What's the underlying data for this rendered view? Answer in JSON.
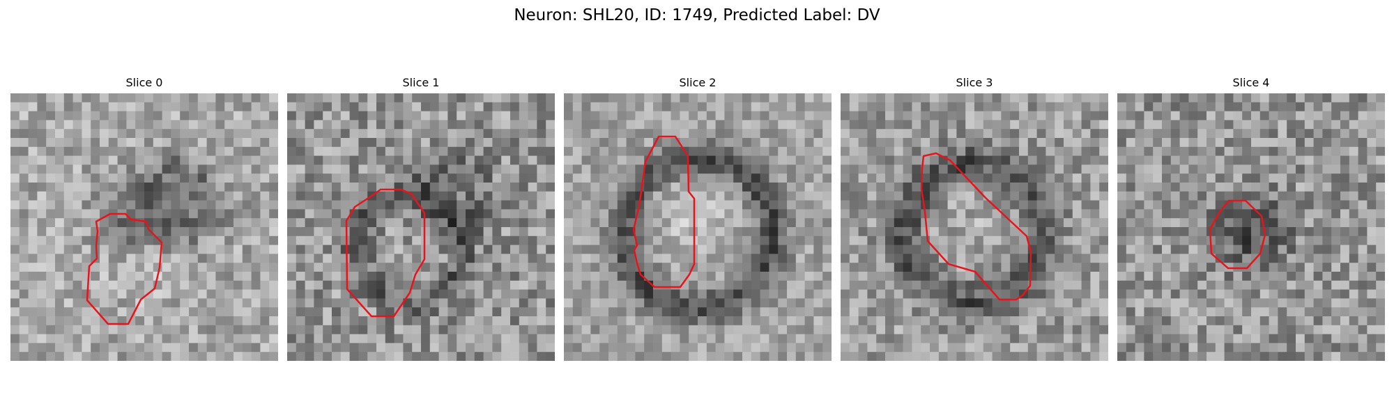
{
  "figure": {
    "title": "Neuron: SHL20, ID: 1749, Predicted Label: DV"
  },
  "colors": {
    "contour": "#e8141b",
    "background": "#ffffff"
  },
  "panels": [
    {
      "title": "Slice 0"
    },
    {
      "title": "Slice 1"
    },
    {
      "title": "Slice 2"
    },
    {
      "title": "Slice 3"
    },
    {
      "title": "Slice 4"
    }
  ]
}
